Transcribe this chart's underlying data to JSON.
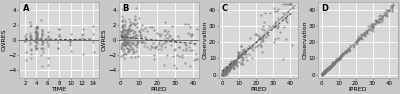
{
  "fig_width": 4.0,
  "fig_height": 0.94,
  "dpi": 100,
  "background_color": "#c8c8c8",
  "plot_bg_color": "#d8d8d8",
  "panel_labels": [
    "A",
    "B",
    "C",
    "D"
  ],
  "panel_A": {
    "xlabel": "TIME",
    "ylabel": "CWRES",
    "xlim": [
      1,
      15
    ],
    "ylim": [
      -5,
      5
    ],
    "xticks": [
      2,
      4,
      6,
      8,
      10,
      12,
      14
    ],
    "yticks": [
      -4,
      -2,
      0,
      2,
      4
    ]
  },
  "panel_B": {
    "xlabel": "PRED",
    "ylabel": "CWRES",
    "xlim": [
      -1,
      43
    ],
    "ylim": [
      -5,
      5
    ],
    "xticks": [
      0,
      10,
      20,
      30,
      40
    ],
    "yticks": [
      -4,
      -2,
      0,
      2,
      4
    ]
  },
  "panel_C": {
    "xlabel": "PRED",
    "ylabel": "Observation",
    "xlim": [
      -2,
      45
    ],
    "ylim": [
      -2,
      45
    ],
    "xticks": [
      0,
      10,
      20,
      30,
      40
    ],
    "yticks": [
      0,
      10,
      20,
      30,
      40
    ]
  },
  "panel_D": {
    "xlabel": "IPRED",
    "ylabel": "Observation",
    "xlim": [
      -2,
      45
    ],
    "ylim": [
      -2,
      45
    ],
    "xticks": [
      0,
      10,
      20,
      30,
      40
    ],
    "yticks": [
      0,
      10,
      20,
      30,
      40
    ]
  },
  "dot_color": "#777777",
  "dot_size": 2.5,
  "dot_alpha": 0.65,
  "grid_color": "#ffffff",
  "grid_lw": 0.6,
  "hline_color": "#333333",
  "hline_lw": 0.5,
  "diag_color": "#999999",
  "diag_lw": 0.8,
  "loess_color": "#444444",
  "loess_lw": 0.7,
  "label_fs": 4.5,
  "panel_label_fs": 6.0,
  "tick_fs": 4.0
}
